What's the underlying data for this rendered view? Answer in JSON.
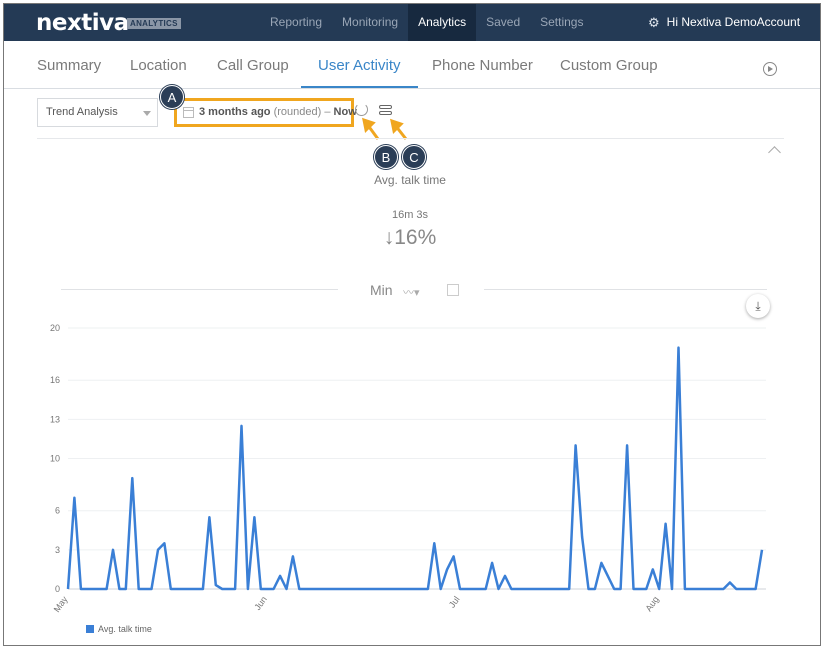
{
  "header": {
    "logo_text": "nextiva",
    "logo_badge": "ANALYTICS",
    "nav": [
      {
        "label": "Reporting",
        "active": false
      },
      {
        "label": "Monitoring",
        "active": false
      },
      {
        "label": "Analytics",
        "active": true
      },
      {
        "label": "Saved",
        "active": false
      },
      {
        "label": "Settings",
        "active": false
      }
    ],
    "user_greeting": "Hi Nextiva DemoAccount",
    "user_icon": "gear-icon"
  },
  "tabs": [
    {
      "label": "Summary",
      "active": false
    },
    {
      "label": "Location",
      "active": false
    },
    {
      "label": "Call Group",
      "active": false
    },
    {
      "label": "User Activity",
      "active": true
    },
    {
      "label": "Phone Number",
      "active": false
    },
    {
      "label": "Custom Group",
      "active": false
    }
  ],
  "filters": {
    "report_type": "Trend Analysis",
    "date_start": "3 months ago",
    "date_qualifier": "(rounded)",
    "date_separator": "–",
    "date_end": "Now"
  },
  "callouts": {
    "a": "A",
    "b": "B",
    "c": "C"
  },
  "metric": {
    "title": "Avg. talk time",
    "value": "16m 3s",
    "change_arrow": "↓",
    "change": "16%"
  },
  "chart_header": {
    "unit": "Min"
  },
  "colors": {
    "accent": "#3a86c8",
    "series": "#3a7fd6",
    "highlight": "#f0a61f",
    "navbar": "#243a55"
  },
  "chart_data": {
    "type": "line",
    "ylim": [
      0,
      20
    ],
    "y_ticks": [
      "0",
      "3",
      "6",
      "10",
      "13",
      "16",
      "20"
    ],
    "x_ticks": [
      "May",
      "Jun",
      "Jul",
      "Aug"
    ],
    "x_tick_index": [
      0,
      31,
      61,
      92
    ],
    "series": [
      {
        "name": "Avg. talk time",
        "values": [
          0,
          7,
          0,
          0,
          0,
          0,
          0,
          3,
          0,
          0,
          8.5,
          0,
          0,
          0,
          3,
          3.5,
          0,
          0,
          0,
          0,
          0,
          0,
          5.5,
          0.3,
          0,
          0,
          0,
          12.5,
          0,
          5.5,
          0,
          0,
          0,
          1,
          0,
          2.5,
          0,
          0,
          0,
          0,
          0,
          0,
          0,
          0,
          0,
          0,
          0,
          0,
          0,
          0,
          0,
          0,
          0,
          0,
          0,
          0,
          0,
          3.5,
          0,
          1.5,
          2.5,
          0,
          0,
          0,
          0,
          0,
          2,
          0,
          1,
          0,
          0,
          0,
          0,
          0,
          0,
          0,
          0,
          0,
          0,
          11,
          4,
          0,
          0,
          2,
          1,
          0,
          0,
          11,
          0,
          0,
          0,
          1.5,
          0,
          5,
          0,
          18.5,
          0,
          0,
          0,
          0,
          0,
          0,
          0,
          0.5,
          0,
          0,
          0,
          0,
          3
        ]
      }
    ]
  }
}
